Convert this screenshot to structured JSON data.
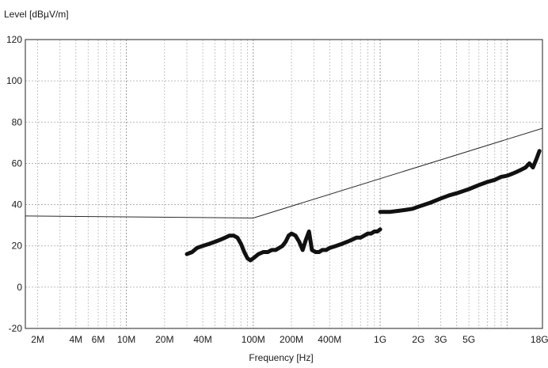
{
  "chart_data": {
    "type": "line",
    "title": "",
    "ylabel": "Level [dBµV/m]",
    "xlabel": "Frequency [Hz]",
    "x_scale": "log",
    "xlim": [
      1600000,
      19000000000
    ],
    "ylim": [
      -20,
      120
    ],
    "grid": true,
    "legend": "none",
    "y_ticks": [
      -20,
      0,
      20,
      40,
      60,
      80,
      100,
      120
    ],
    "x_ticks": [
      {
        "value": 2000000,
        "label": "2M"
      },
      {
        "value": 4000000,
        "label": "4M"
      },
      {
        "value": 6000000,
        "label": "6M"
      },
      {
        "value": 10000000,
        "label": "10M"
      },
      {
        "value": 20000000,
        "label": "20M"
      },
      {
        "value": 40000000,
        "label": "40M"
      },
      {
        "value": 100000000,
        "label": "100M"
      },
      {
        "value": 200000000,
        "label": "200M"
      },
      {
        "value": 400000000,
        "label": "400M"
      },
      {
        "value": 1000000000,
        "label": "1G"
      },
      {
        "value": 2000000000,
        "label": "2G"
      },
      {
        "value": 3000000000,
        "label": "3G"
      },
      {
        "value": 5000000000,
        "label": "5G"
      },
      {
        "value": 18000000000,
        "label": "18G"
      }
    ],
    "series": [
      {
        "color": "#2a2a2a",
        "style": "thin",
        "x": [
          1600000,
          100000000,
          19000000000
        ],
        "y": [
          34.5,
          33.5,
          77
        ]
      },
      {
        "color": "#111111",
        "style": "thick",
        "x": [
          30000000,
          33000000,
          36000000,
          40000000,
          45000000,
          50000000,
          55000000,
          60000000,
          65000000,
          70000000,
          75000000,
          80000000,
          85000000,
          90000000,
          95000000,
          100000000,
          110000000,
          120000000,
          130000000,
          140000000,
          150000000,
          160000000,
          170000000,
          180000000,
          190000000,
          200000000,
          215000000,
          230000000,
          245000000,
          260000000,
          275000000,
          290000000,
          310000000,
          330000000,
          350000000,
          375000000,
          400000000,
          450000000,
          500000000,
          550000000,
          600000000,
          650000000,
          700000000,
          750000000,
          800000000,
          850000000,
          900000000,
          950000000,
          1000000000
        ],
        "y": [
          16,
          17,
          19,
          20,
          21,
          22,
          23,
          24,
          25,
          25,
          24,
          21,
          17,
          14,
          13,
          14,
          16,
          17,
          17,
          18,
          18,
          19,
          20,
          22,
          25,
          26,
          25,
          22,
          18,
          23,
          27,
          18,
          17,
          17,
          18,
          18,
          19,
          20,
          21,
          22,
          23,
          24,
          24,
          25,
          26,
          26,
          27,
          27,
          28
        ]
      },
      {
        "color": "#111111",
        "style": "thick",
        "x": [
          1000000000,
          1200000000,
          1400000000,
          1600000000,
          1800000000,
          2000000000,
          2500000000,
          3000000000,
          3500000000,
          4000000000,
          5000000000,
          6000000000,
          7000000000,
          8000000000,
          9000000000,
          10000000000,
          11000000000,
          12000000000,
          13000000000,
          14000000000,
          15000000000,
          16000000000,
          17000000000,
          18000000000
        ],
        "y": [
          36.5,
          36.5,
          37,
          37.5,
          38,
          39,
          41,
          43,
          44.5,
          45.5,
          47.5,
          49.5,
          51,
          52,
          53.5,
          54,
          55,
          56,
          57,
          58,
          60,
          58,
          62,
          66
        ]
      }
    ]
  }
}
